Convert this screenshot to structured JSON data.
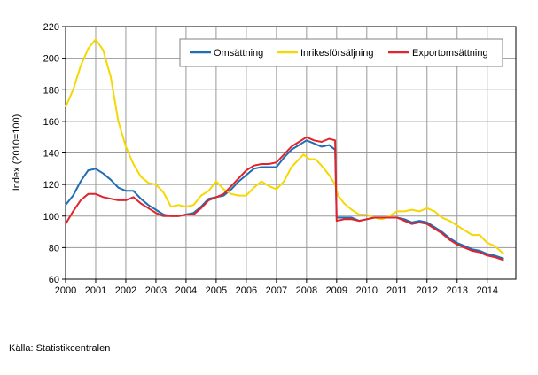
{
  "chart_data": {
    "type": "line",
    "title": "",
    "xlabel": "",
    "ylabel": "Index (2010=100)",
    "xlim": [
      2000,
      2014.95
    ],
    "ylim": [
      60,
      220
    ],
    "x_ticks": [
      "2000",
      "2001",
      "2002",
      "2003",
      "2004",
      "2005",
      "2006",
      "2007",
      "2008",
      "2009",
      "2010",
      "2011",
      "2012",
      "2013",
      "2014"
    ],
    "y_ticks": [
      60,
      80,
      100,
      120,
      140,
      160,
      180,
      200,
      220
    ],
    "grid": true,
    "legend": "top-right",
    "series": [
      {
        "name": "Omsättning",
        "color": "#1f6db5",
        "x": [
          2000,
          2000.25,
          2000.5,
          2000.75,
          2001,
          2001.25,
          2001.5,
          2001.75,
          2002,
          2002.25,
          2002.5,
          2002.75,
          2003,
          2003.25,
          2003.5,
          2003.75,
          2004,
          2004.25,
          2004.5,
          2004.75,
          2005,
          2005.25,
          2005.5,
          2005.75,
          2006,
          2006.25,
          2006.5,
          2006.75,
          2007,
          2007.25,
          2007.5,
          2007.75,
          2008,
          2008.25,
          2008.5,
          2008.75,
          2008.95,
          2009.0,
          2009.25,
          2009.5,
          2009.75,
          2010,
          2010.25,
          2010.5,
          2010.75,
          2011,
          2011.25,
          2011.5,
          2011.75,
          2012,
          2012.25,
          2012.5,
          2012.75,
          2013,
          2013.25,
          2013.5,
          2013.75,
          2014,
          2014.25,
          2014.55
        ],
        "y": [
          107,
          113,
          122,
          129,
          130,
          127,
          123,
          118,
          116,
          116,
          111,
          107,
          104,
          101,
          100,
          100,
          101,
          102,
          106,
          111,
          112,
          113,
          117,
          122,
          126,
          130,
          131,
          131,
          131,
          137,
          142,
          145,
          148,
          146,
          144,
          145,
          142,
          99,
          99,
          99,
          97,
          98,
          99,
          99,
          99,
          99,
          98,
          96,
          97,
          96,
          93,
          90,
          86,
          83,
          81,
          79,
          78,
          76,
          75,
          73
        ]
      },
      {
        "name": "Inrikesförsäljning",
        "color": "#f5d800",
        "x": [
          2000,
          2000.25,
          2000.5,
          2000.75,
          2001,
          2001.25,
          2001.5,
          2001.75,
          2002,
          2002.25,
          2002.5,
          2002.75,
          2003,
          2003.25,
          2003.5,
          2003.75,
          2004,
          2004.25,
          2004.5,
          2004.75,
          2005,
          2005.25,
          2005.5,
          2005.75,
          2006,
          2006.25,
          2006.5,
          2006.75,
          2007,
          2007.25,
          2007.5,
          2007.9,
          2008.1,
          2008.3,
          2008.5,
          2008.75,
          2008.95,
          2009.05,
          2009.25,
          2009.5,
          2009.75,
          2010,
          2010.25,
          2010.5,
          2010.75,
          2011,
          2011.25,
          2011.5,
          2011.75,
          2012,
          2012.25,
          2012.5,
          2012.75,
          2013,
          2013.25,
          2013.5,
          2013.75,
          2014,
          2014.25,
          2014.55
        ],
        "y": [
          169,
          180,
          195,
          206,
          212,
          205,
          188,
          160,
          144,
          133,
          125,
          121,
          120,
          115,
          106,
          107,
          106,
          107,
          113,
          116,
          122,
          117,
          114,
          113,
          113,
          118,
          122,
          119,
          117,
          122,
          131,
          139,
          136,
          136,
          132,
          126,
          120,
          113,
          108,
          104,
          101,
          101,
          99,
          98,
          100,
          103,
          103,
          104,
          103,
          105,
          103,
          99,
          97,
          94,
          91,
          88,
          88,
          83,
          81,
          76
        ]
      },
      {
        "name": "Exportomsättning",
        "color": "#e0242c",
        "x": [
          2000,
          2000.25,
          2000.5,
          2000.75,
          2001,
          2001.25,
          2001.5,
          2001.75,
          2002,
          2002.25,
          2002.5,
          2002.75,
          2003,
          2003.25,
          2003.5,
          2003.75,
          2004,
          2004.25,
          2004.5,
          2004.75,
          2005,
          2005.25,
          2005.5,
          2005.75,
          2006,
          2006.25,
          2006.5,
          2006.75,
          2007,
          2007.25,
          2007.5,
          2007.75,
          2008,
          2008.25,
          2008.5,
          2008.75,
          2008.95,
          2009.0,
          2009.25,
          2009.5,
          2009.75,
          2010,
          2010.25,
          2010.5,
          2010.75,
          2011,
          2011.25,
          2011.5,
          2011.75,
          2012,
          2012.25,
          2012.5,
          2012.75,
          2013,
          2013.25,
          2013.5,
          2013.75,
          2014,
          2014.25,
          2014.55
        ],
        "y": [
          95,
          103,
          110,
          114,
          114,
          112,
          111,
          110,
          110,
          112,
          108,
          105,
          102,
          100,
          100,
          100,
          101,
          101,
          105,
          110,
          112,
          114,
          119,
          124,
          129,
          132,
          133,
          133,
          134,
          139,
          144,
          147,
          150,
          148,
          147,
          149,
          148,
          97,
          98,
          98,
          97,
          98,
          99,
          99,
          99,
          99,
          97,
          95,
          96,
          95,
          92,
          89,
          85,
          82,
          80,
          78,
          77,
          75,
          74,
          72
        ]
      }
    ]
  },
  "footer": {
    "source": "Källa: Statistikcentralen"
  }
}
